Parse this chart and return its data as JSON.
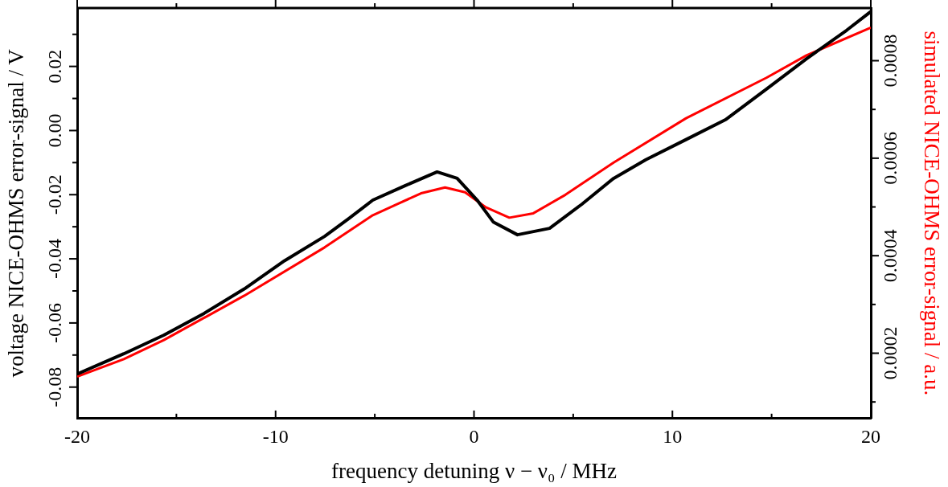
{
  "chart_data": {
    "type": "line",
    "xlabel": "frequency detuning ν − ν₀ / MHz",
    "ylabel": "voltage NICE-OHMS error-signal / V",
    "y2label": "simulated NICE-OHMS error-signal / a.u.",
    "xlim": [
      -20,
      20
    ],
    "xticks": [
      -20,
      {
        "value": -15,
        "label": null
      },
      -10,
      {
        "value": -5,
        "label": null
      },
      0,
      {
        "value": 5,
        "label": null
      },
      10,
      {
        "value": 15,
        "label": null
      },
      20
    ],
    "ylim": [
      -0.0898,
      0.0382
    ],
    "yticks": [
      {
        "value": -0.08,
        "label": "-0.08"
      },
      {
        "value": -0.07,
        "label": null
      },
      {
        "value": -0.06,
        "label": "-0.06"
      },
      {
        "value": -0.05,
        "label": null
      },
      {
        "value": -0.04,
        "label": "-0.04"
      },
      {
        "value": -0.03,
        "label": null
      },
      {
        "value": -0.02,
        "label": "-0.02"
      },
      {
        "value": -0.01,
        "label": null
      },
      {
        "value": 0,
        "label": "0.00"
      },
      {
        "value": 0.01,
        "label": null
      },
      {
        "value": 0.02,
        "label": "0.02"
      },
      {
        "value": 0.03,
        "label": null
      }
    ],
    "y2lim": [
      6.6e-05,
      0.000908
    ],
    "y2ticks": [
      {
        "value": 0.0001,
        "label": null
      },
      0.0002,
      {
        "value": 0.0003,
        "label": null
      },
      0.0004,
      {
        "value": 0.0005,
        "label": null
      },
      0.0006,
      {
        "value": 0.0007,
        "label": null
      },
      0.0008
    ],
    "grid": false,
    "legend": false,
    "marker": "none",
    "line_style": "solid",
    "series": [
      {
        "color": "#000000",
        "x": [
          -20,
          -17.65,
          -15.63,
          -13.6,
          -11.58,
          -9.55,
          -7.53,
          -6.32,
          -5.1,
          -3.48,
          -1.86,
          -0.85,
          0.16,
          0.97,
          2.19,
          3.81,
          5.43,
          7.04,
          8.66,
          10.69,
          12.71,
          14.74,
          16.76,
          18.79,
          20
        ],
        "values": [
          -0.0759,
          -0.0696,
          -0.0638,
          -0.057,
          -0.0494,
          -0.0406,
          -0.033,
          -0.0275,
          -0.0217,
          -0.0172,
          -0.0129,
          -0.0149,
          -0.0217,
          -0.0285,
          -0.0325,
          -0.0305,
          -0.023,
          -0.0149,
          -0.0091,
          -0.0028,
          0.0035,
          0.0129,
          0.0224,
          0.0313,
          0.0371
        ]
      },
      {
        "color": "#ff0000",
        "axis": "y2",
        "x": [
          -20,
          -17.65,
          -15.63,
          -11.58,
          -7.53,
          -5.1,
          -2.67,
          -1.46,
          -0.45,
          0.57,
          1.78,
          2.99,
          4.61,
          7.04,
          10.69,
          14.74,
          16.76,
          20
        ],
        "values": [
          0.000152,
          0.000188,
          0.000227,
          0.000318,
          0.000417,
          0.000483,
          0.000528,
          0.00054,
          0.00053,
          0.0005,
          0.000478,
          0.000487,
          0.000525,
          0.000591,
          0.000682,
          0.000765,
          0.000811,
          0.000868
        ]
      }
    ]
  }
}
